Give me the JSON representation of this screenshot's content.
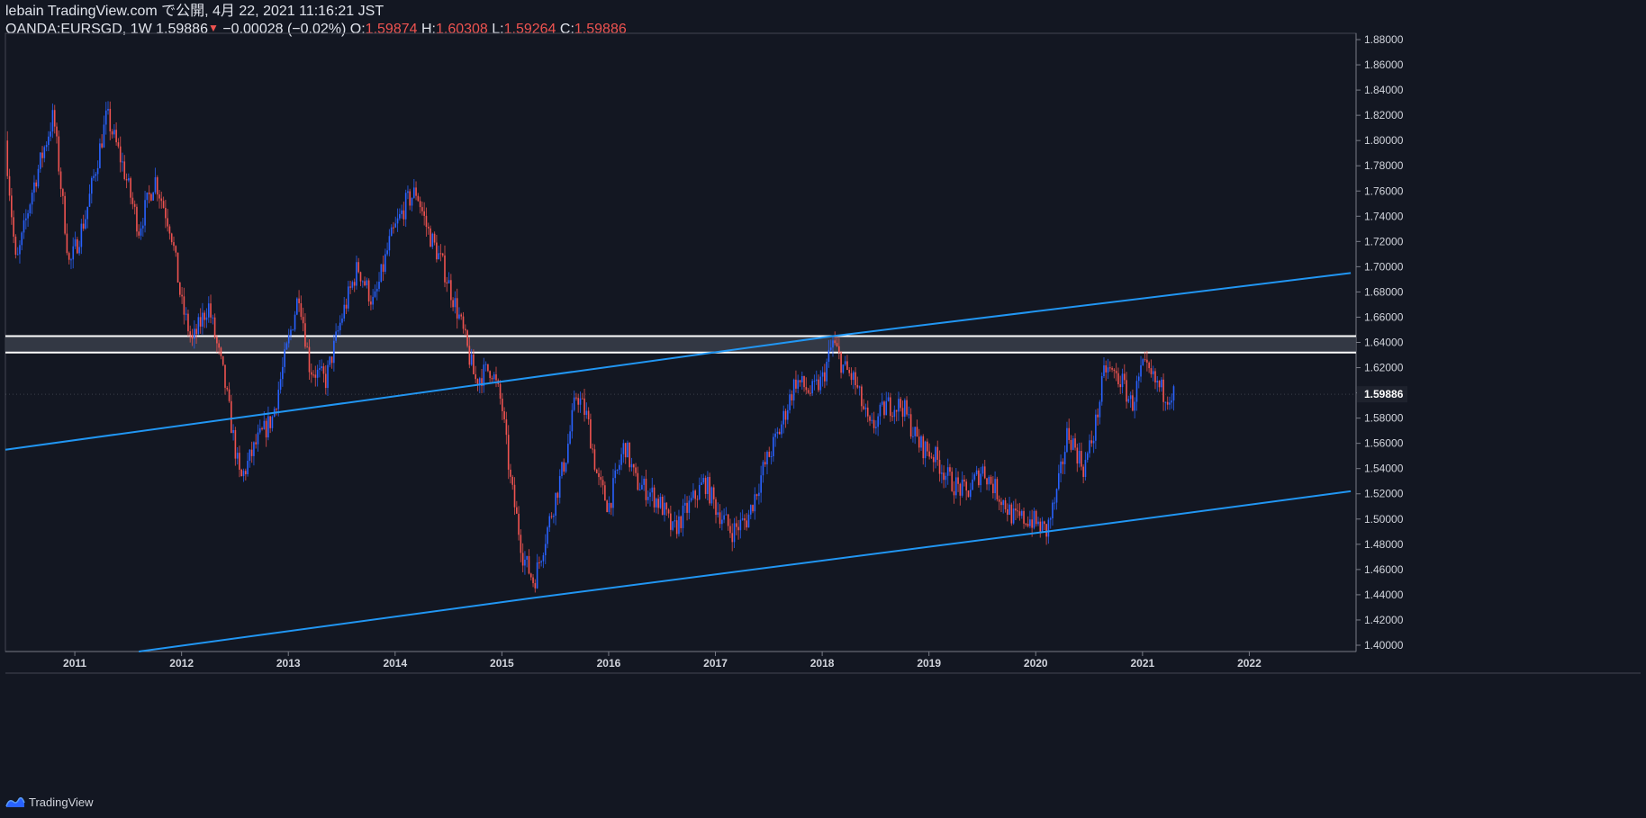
{
  "header": {
    "publish_line": "lebain TradingView.com で公開, 4月 22, 2021 11:16:21 JST",
    "symbol": "OANDA:EURSGD, 1W",
    "last": "1.59886",
    "change": "−0.00028 (−0.02%)",
    "open_label": "O:",
    "open": "1.59874",
    "high_label": "H:",
    "high": "1.60308",
    "low_label": "L:",
    "low": "1.59264",
    "close_label": "C:",
    "close": "1.59886"
  },
  "footer": {
    "brand": "TradingView",
    "logo_icon": "tradingview-logo-icon"
  },
  "colors": {
    "background": "#131722",
    "up": "#2962ff",
    "down": "#ef5350",
    "trendline": "#2196f3",
    "zone_border": "#ffffff",
    "zone_fill": "#3a3e4a",
    "price_tag": "#1e222d"
  },
  "chart_data": {
    "type": "candlestick",
    "symbol": "OANDA:EURSGD",
    "interval": "1W",
    "x_ticks": [
      "2011",
      "2012",
      "2013",
      "2014",
      "2015",
      "2016",
      "2017",
      "2018",
      "2019",
      "2020",
      "2021",
      "2022"
    ],
    "y_ticks": [
      "1.88000",
      "1.86000",
      "1.84000",
      "1.82000",
      "1.80000",
      "1.78000",
      "1.76000",
      "1.74000",
      "1.72000",
      "1.70000",
      "1.68000",
      "1.66000",
      "1.64000",
      "1.62000",
      "1.60000",
      "1.58000",
      "1.56000",
      "1.54000",
      "1.52000",
      "1.50000",
      "1.48000",
      "1.46000",
      "1.44000",
      "1.42000",
      "1.40000"
    ],
    "ylim": [
      1.395,
      1.885
    ],
    "xlim": [
      2010.35,
      2023.0
    ],
    "last_price": "1.59886",
    "approx_close_path": [
      [
        2010.35,
        1.8
      ],
      [
        2010.45,
        1.7
      ],
      [
        2010.6,
        1.76
      ],
      [
        2010.8,
        1.82
      ],
      [
        2010.95,
        1.7
      ],
      [
        2011.1,
        1.74
      ],
      [
        2011.2,
        1.78
      ],
      [
        2011.3,
        1.82
      ],
      [
        2011.45,
        1.78
      ],
      [
        2011.6,
        1.73
      ],
      [
        2011.75,
        1.77
      ],
      [
        2011.9,
        1.73
      ],
      [
        2012.0,
        1.67
      ],
      [
        2012.1,
        1.64
      ],
      [
        2012.25,
        1.67
      ],
      [
        2012.4,
        1.61
      ],
      [
        2012.55,
        1.53
      ],
      [
        2012.7,
        1.56
      ],
      [
        2012.85,
        1.58
      ],
      [
        2013.0,
        1.64
      ],
      [
        2013.1,
        1.68
      ],
      [
        2013.2,
        1.62
      ],
      [
        2013.35,
        1.61
      ],
      [
        2013.5,
        1.66
      ],
      [
        2013.65,
        1.7
      ],
      [
        2013.8,
        1.67
      ],
      [
        2013.95,
        1.72
      ],
      [
        2014.1,
        1.75
      ],
      [
        2014.2,
        1.76
      ],
      [
        2014.3,
        1.73
      ],
      [
        2014.45,
        1.7
      ],
      [
        2014.6,
        1.66
      ],
      [
        2014.75,
        1.61
      ],
      [
        2014.9,
        1.62
      ],
      [
        2015.0,
        1.59
      ],
      [
        2015.08,
        1.53
      ],
      [
        2015.2,
        1.47
      ],
      [
        2015.3,
        1.45
      ],
      [
        2015.45,
        1.5
      ],
      [
        2015.6,
        1.55
      ],
      [
        2015.7,
        1.6
      ],
      [
        2015.8,
        1.58
      ],
      [
        2015.9,
        1.53
      ],
      [
        2016.0,
        1.51
      ],
      [
        2016.15,
        1.56
      ],
      [
        2016.25,
        1.53
      ],
      [
        2016.4,
        1.52
      ],
      [
        2016.5,
        1.51
      ],
      [
        2016.6,
        1.49
      ],
      [
        2016.75,
        1.51
      ],
      [
        2016.9,
        1.53
      ],
      [
        2017.0,
        1.51
      ],
      [
        2017.15,
        1.49
      ],
      [
        2017.3,
        1.5
      ],
      [
        2017.45,
        1.54
      ],
      [
        2017.6,
        1.57
      ],
      [
        2017.75,
        1.61
      ],
      [
        2017.9,
        1.6
      ],
      [
        2018.0,
        1.61
      ],
      [
        2018.1,
        1.64
      ],
      [
        2018.2,
        1.62
      ],
      [
        2018.3,
        1.61
      ],
      [
        2018.45,
        1.57
      ],
      [
        2018.6,
        1.59
      ],
      [
        2018.75,
        1.59
      ],
      [
        2018.9,
        1.56
      ],
      [
        2019.05,
        1.55
      ],
      [
        2019.2,
        1.53
      ],
      [
        2019.35,
        1.52
      ],
      [
        2019.5,
        1.54
      ],
      [
        2019.65,
        1.52
      ],
      [
        2019.8,
        1.5
      ],
      [
        2019.95,
        1.5
      ],
      [
        2020.1,
        1.49
      ],
      [
        2020.2,
        1.52
      ],
      [
        2020.3,
        1.57
      ],
      [
        2020.45,
        1.54
      ],
      [
        2020.55,
        1.57
      ],
      [
        2020.65,
        1.62
      ],
      [
        2020.8,
        1.61
      ],
      [
        2020.9,
        1.59
      ],
      [
        2021.0,
        1.62
      ],
      [
        2021.1,
        1.61
      ],
      [
        2021.2,
        1.6
      ],
      [
        2021.3,
        1.59886
      ]
    ],
    "annotations": {
      "resistance_zone": [
        1.632,
        1.645
      ],
      "upper_trendline": [
        [
          2010.35,
          1.555
        ],
        [
          2018.1,
          1.645
        ],
        [
          2022.95,
          1.695
        ]
      ],
      "lower_trendline": [
        [
          2011.6,
          1.395
        ],
        [
          2015.25,
          1.437
        ],
        [
          2020.1,
          1.49
        ],
        [
          2022.95,
          1.522
        ]
      ]
    }
  }
}
